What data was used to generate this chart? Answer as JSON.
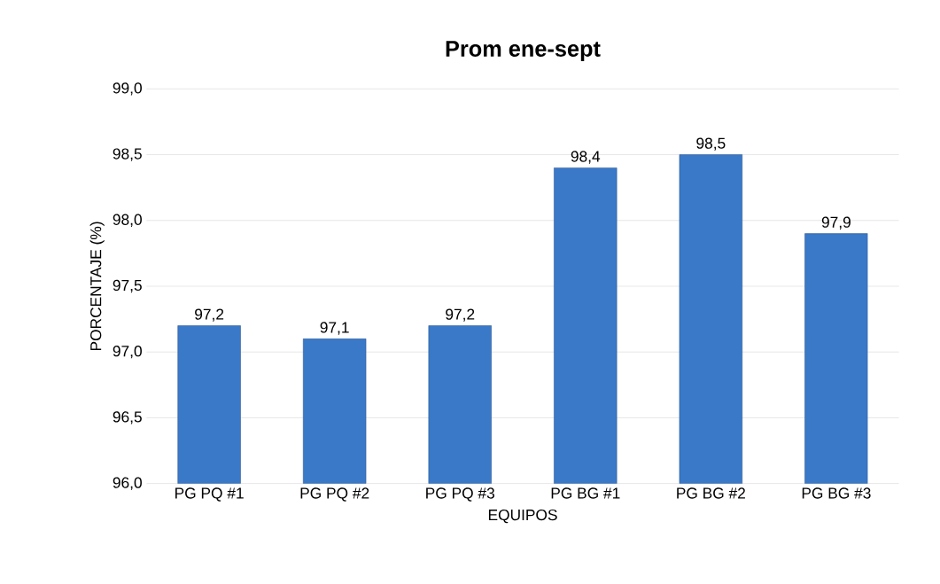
{
  "chart_data": {
    "type": "bar",
    "title": "Prom ene-sept",
    "xlabel": "EQUIPOS",
    "ylabel": "PORCENTAJE (%)",
    "categories": [
      "PG PQ #1",
      "PG PQ #2",
      "PG PQ #3",
      "PG BG #1",
      "PG BG #2",
      "PG BG #3"
    ],
    "values": [
      97.2,
      97.1,
      97.2,
      98.4,
      98.5,
      97.9
    ],
    "value_labels": [
      "97,2",
      "97,1",
      "97,2",
      "98,4",
      "98,5",
      "97,9"
    ],
    "color": "#3a78c8",
    "ylim": [
      96,
      99
    ],
    "yticks": [
      {
        "value": 96,
        "label": "96,0"
      },
      {
        "value": 96.5,
        "label": "96,5"
      },
      {
        "value": 97,
        "label": "97,0"
      },
      {
        "value": 97.5,
        "label": "97,5"
      },
      {
        "value": 98,
        "label": "98,0"
      },
      {
        "value": 98.5,
        "label": "98,5"
      },
      {
        "value": 99,
        "label": "99,0"
      }
    ],
    "grid": "y"
  }
}
